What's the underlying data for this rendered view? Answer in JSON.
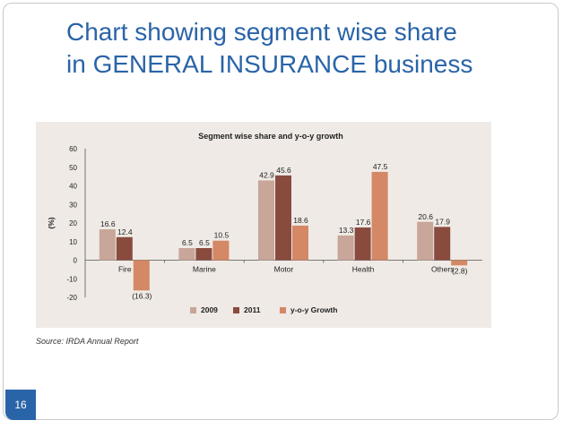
{
  "slide": {
    "title_line1": "Chart showing segment wise share",
    "title_line2": "in GENERAL INSURANCE  business",
    "source": "Source: IRDA Annual Report",
    "page_number": "16"
  },
  "chart_data": {
    "type": "bar",
    "title": "Segment wise share and y-o-y growth",
    "ylabel": "(%)",
    "xlabel": "",
    "ylim": [
      -20,
      60
    ],
    "yticks": [
      60,
      50,
      40,
      30,
      20,
      10,
      0,
      -10,
      -20
    ],
    "grid": false,
    "legend_position": "bottom",
    "categories": [
      "Fire",
      "Marine",
      "Motor",
      "Health",
      "Others"
    ],
    "series": [
      {
        "name": "2009",
        "color": "#c8a699",
        "values": [
          16.6,
          6.5,
          42.9,
          13.3,
          20.6
        ],
        "labels": [
          "16.6",
          "6.5",
          "42.9",
          "13.3",
          "20.6"
        ]
      },
      {
        "name": "2011",
        "color": "#8a4b3f",
        "values": [
          12.4,
          6.5,
          45.6,
          17.6,
          17.9
        ],
        "labels": [
          "12.4",
          "6.5",
          "45.6",
          "17.6",
          "17.9"
        ]
      },
      {
        "name": "y-o-y Growth",
        "color": "#d48865",
        "values": [
          -16.3,
          10.5,
          18.6,
          47.5,
          -2.8
        ],
        "labels": [
          "(16.3)",
          "10.5",
          "18.6",
          "47.5",
          "(2.8)"
        ]
      }
    ]
  }
}
